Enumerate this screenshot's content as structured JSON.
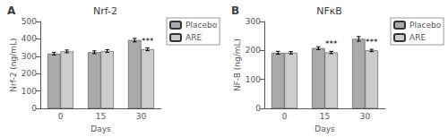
{
  "chart_data": [
    {
      "type": "bar",
      "title": "Nrf-2",
      "xlabel": "Days",
      "ylabel": "Nrf-2 (ng/mL)",
      "categories": [
        "0",
        "15",
        "30"
      ],
      "series": [
        {
          "name": "Placebo",
          "color": "#aaaaaa",
          "values": [
            315,
            323,
            393
          ],
          "errors": [
            8,
            8,
            10
          ]
        },
        {
          "name": "ARE",
          "color": "#cccccc",
          "values": [
            328,
            330,
            340
          ],
          "errors": [
            8,
            8,
            8
          ]
        }
      ],
      "ylim": [
        0,
        500
      ],
      "yticks": [
        0,
        100,
        200,
        300,
        400,
        500
      ],
      "grid": false,
      "legend": "upper right",
      "annotations": [
        {
          "text": "A"
        },
        {
          "text": "***",
          "series": "ARE",
          "category": "30"
        }
      ]
    },
    {
      "type": "bar",
      "title": "NFκB",
      "xlabel": "Days",
      "ylabel": "NF-B (ng/mL)",
      "categories": [
        "0",
        "15",
        "30"
      ],
      "series": [
        {
          "name": "Placebo",
          "color": "#aaaaaa",
          "values": [
            192,
            208,
            240
          ],
          "errors": [
            5,
            5,
            8
          ]
        },
        {
          "name": "ARE",
          "color": "#cccccc",
          "values": [
            192,
            193,
            200
          ],
          "errors": [
            4,
            4,
            4
          ]
        }
      ],
      "ylim": [
        0,
        300
      ],
      "yticks": [
        0,
        100,
        200,
        300
      ],
      "grid": false,
      "legend": "upper right",
      "annotations": [
        {
          "text": "B"
        },
        {
          "text": "***",
          "series": "ARE",
          "category": "15"
        },
        {
          "text": "***",
          "series": "ARE",
          "category": "30"
        }
      ]
    }
  ]
}
